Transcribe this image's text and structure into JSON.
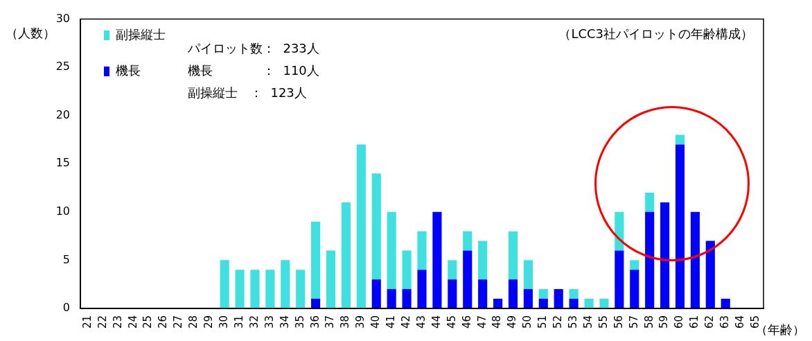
{
  "chart_data": {
    "type": "bar",
    "title": "（LCC3社パイロットの年齢構成）",
    "ylabel": "（人数）",
    "xlabel": "（年齢）",
    "categories": [
      "21",
      "22",
      "23",
      "24",
      "25",
      "26",
      "27",
      "28",
      "29",
      "30",
      "31",
      "32",
      "33",
      "34",
      "35",
      "36",
      "37",
      "38",
      "39",
      "40",
      "41",
      "42",
      "43",
      "44",
      "45",
      "46",
      "47",
      "48",
      "49",
      "50",
      "51",
      "52",
      "53",
      "54",
      "55",
      "56",
      "57",
      "58",
      "59",
      "60",
      "61",
      "62",
      "63",
      "64",
      "65"
    ],
    "series": [
      {
        "name": "機長",
        "color": "#0000ff",
        "values": [
          0,
          0,
          0,
          0,
          0,
          0,
          0,
          0,
          0,
          0,
          0,
          0,
          0,
          0,
          0,
          1,
          0,
          0,
          0,
          3,
          2,
          2,
          4,
          10,
          3,
          6,
          3,
          1,
          3,
          2,
          1,
          2,
          1,
          0,
          0,
          6,
          4,
          10,
          11,
          17,
          10,
          7,
          1,
          0,
          0
        ]
      },
      {
        "name": "副操縦士",
        "color": "#40e0e0",
        "values": [
          0,
          0,
          0,
          0,
          0,
          0,
          0,
          0,
          0,
          5,
          4,
          4,
          4,
          5,
          4,
          8,
          6,
          11,
          17,
          11,
          8,
          4,
          4,
          0,
          2,
          2,
          4,
          0,
          5,
          3,
          1,
          0,
          1,
          1,
          1,
          4,
          1,
          2,
          0,
          1,
          0,
          0,
          0,
          0,
          0
        ]
      }
    ],
    "stacked": true,
    "ylim": [
      0,
      30
    ],
    "yticks": [
      0,
      5,
      10,
      15,
      20,
      25,
      30
    ],
    "grid": false,
    "legend": "top left",
    "annotations": [
      "パイロット数：  233人",
      "機長　　　　：  110人",
      "副操縦士　：  123人"
    ]
  }
}
